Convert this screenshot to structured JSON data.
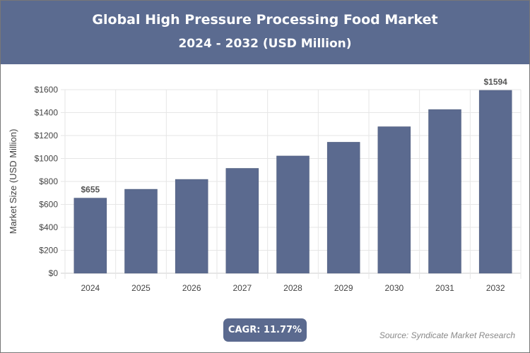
{
  "header": {
    "title": "Global High Pressure Processing Food Market",
    "subtitle": "2024 - 2032 (USD Million)"
  },
  "chart_data": {
    "type": "bar",
    "categories": [
      "2024",
      "2025",
      "2026",
      "2027",
      "2028",
      "2029",
      "2030",
      "2031",
      "2032"
    ],
    "values": [
      655,
      732,
      818,
      914,
      1022,
      1142,
      1277,
      1427,
      1594
    ],
    "data_labels": {
      "0": "$655",
      "8": "$1594"
    },
    "ylabel": "Market Size (USD Million)",
    "xlabel": "",
    "ylim": [
      0,
      1600
    ],
    "yticks": [
      "$0",
      "$200",
      "$400",
      "$600",
      "$800",
      "$1000",
      "$1200",
      "$1400",
      "$1600"
    ],
    "grid": true,
    "bar_color": "#5b6a8f"
  },
  "footer": {
    "cagr": "CAGR: 11.77%",
    "source": "Source: Syndicate Market Research"
  }
}
